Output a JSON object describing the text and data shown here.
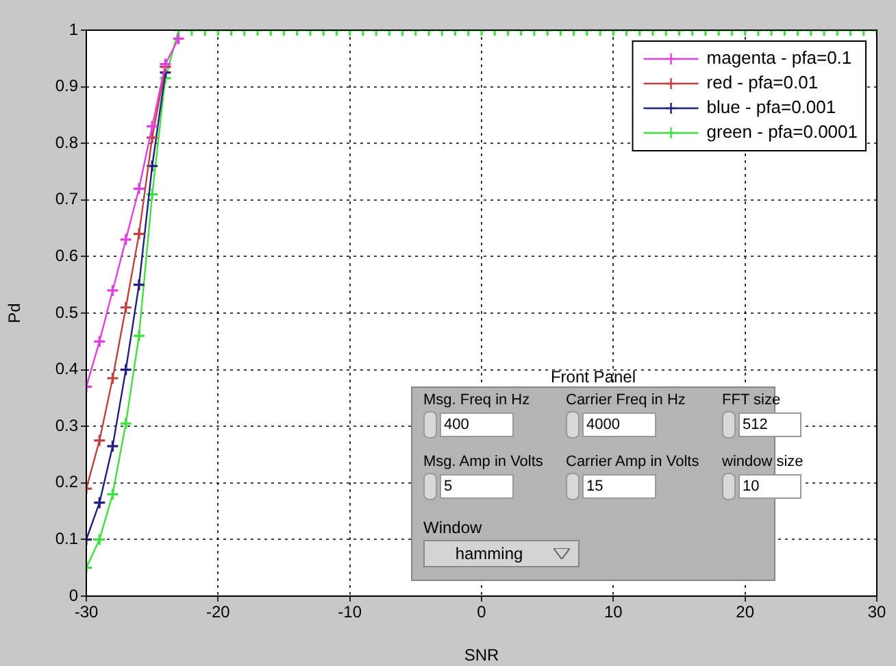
{
  "chart_data": {
    "type": "line",
    "xlabel": "SNR",
    "ylabel": "Pd",
    "x": [
      -30,
      -29,
      -28,
      -27,
      -26,
      -25,
      -24,
      -23,
      -22,
      -21,
      -20,
      -19,
      -18,
      -17,
      -16,
      -15,
      -14,
      -13,
      -12,
      -11,
      -10,
      -9,
      -8,
      -7,
      -6,
      -5,
      -4,
      -3,
      -2,
      -1,
      0,
      1,
      2,
      3,
      4,
      5,
      6,
      7,
      8,
      9,
      10,
      11,
      12,
      13,
      14,
      15,
      16,
      17,
      18,
      19,
      20,
      21,
      22,
      23,
      24,
      25,
      26,
      27,
      28,
      29,
      30
    ],
    "series": [
      {
        "name": "magenta - pfa=0.1",
        "color": "#e040e0",
        "values": [
          0.37,
          0.45,
          0.54,
          0.63,
          0.72,
          0.83,
          0.94,
          0.985,
          null,
          null,
          null,
          null,
          null,
          null,
          null,
          null,
          null,
          null,
          null,
          null,
          null,
          null,
          null,
          null,
          null,
          null,
          null,
          null,
          null,
          null,
          null,
          null,
          null,
          null,
          null,
          null,
          null,
          null,
          null,
          null,
          null,
          null,
          null,
          null,
          null,
          null,
          null,
          null,
          null,
          null,
          null,
          null,
          null,
          null,
          null,
          null,
          null,
          null,
          null,
          null,
          null
        ]
      },
      {
        "name": "red - pfa=0.01",
        "color": "#c04040",
        "values": [
          0.19,
          0.275,
          0.385,
          0.51,
          0.64,
          0.81,
          0.935,
          null,
          null,
          null,
          null,
          null,
          null,
          null,
          null,
          null,
          null,
          null,
          null,
          null,
          null,
          null,
          null,
          null,
          null,
          null,
          null,
          null,
          null,
          null,
          null,
          null,
          null,
          null,
          null,
          null,
          null,
          null,
          null,
          null,
          null,
          null,
          null,
          null,
          null,
          null,
          null,
          null,
          null,
          null,
          null,
          null,
          null,
          null,
          null,
          null,
          null,
          null,
          null,
          null,
          null
        ]
      },
      {
        "name": "blue - pfa=0.001",
        "color": "#202080",
        "values": [
          0.1,
          0.165,
          0.265,
          0.4,
          0.55,
          0.76,
          0.925,
          null,
          null,
          null,
          null,
          null,
          null,
          null,
          null,
          null,
          null,
          null,
          null,
          null,
          null,
          null,
          null,
          null,
          null,
          null,
          null,
          null,
          null,
          null,
          null,
          null,
          null,
          null,
          null,
          null,
          null,
          null,
          null,
          null,
          null,
          null,
          null,
          null,
          null,
          null,
          null,
          null,
          null,
          null,
          null,
          null,
          null,
          null,
          null,
          null,
          null,
          null,
          null,
          null,
          null
        ]
      },
      {
        "name": "green - pfa=0.0001",
        "color": "#40e040",
        "values": [
          0.05,
          0.1,
          0.18,
          0.305,
          0.46,
          0.71,
          0.915,
          1,
          1,
          1,
          1,
          1,
          1,
          1,
          1,
          1,
          1,
          1,
          1,
          1,
          1,
          1,
          1,
          1,
          1,
          1,
          1,
          1,
          1,
          1,
          1,
          1,
          1,
          1,
          1,
          1,
          1,
          1,
          1,
          1,
          1,
          1,
          1,
          1,
          1,
          1,
          1,
          1,
          1,
          1,
          1,
          1,
          1,
          1,
          1,
          1,
          1,
          1,
          1,
          1,
          1
        ]
      }
    ],
    "xlim": [
      -30,
      30
    ],
    "xticks": [
      -30,
      -20,
      -10,
      0,
      10,
      20,
      30
    ],
    "ylim": [
      0,
      1
    ],
    "yticks": [
      0,
      0.1,
      0.2,
      0.3,
      0.4,
      0.5,
      0.6,
      0.7,
      0.8,
      0.9,
      1
    ],
    "grid": true,
    "legend": "top right",
    "marker": "cross",
    "line_style": "solid",
    "annotations": [
      "Front Panel",
      "Msg. Freq in Hz",
      "400",
      "Carrier Freq in Hz",
      "4000",
      "FFT size",
      "512",
      "Msg. Amp in Volts",
      "5",
      "Carrier Amp in Volts",
      "15",
      "window size",
      "10",
      "Window",
      "hamming"
    ]
  }
}
